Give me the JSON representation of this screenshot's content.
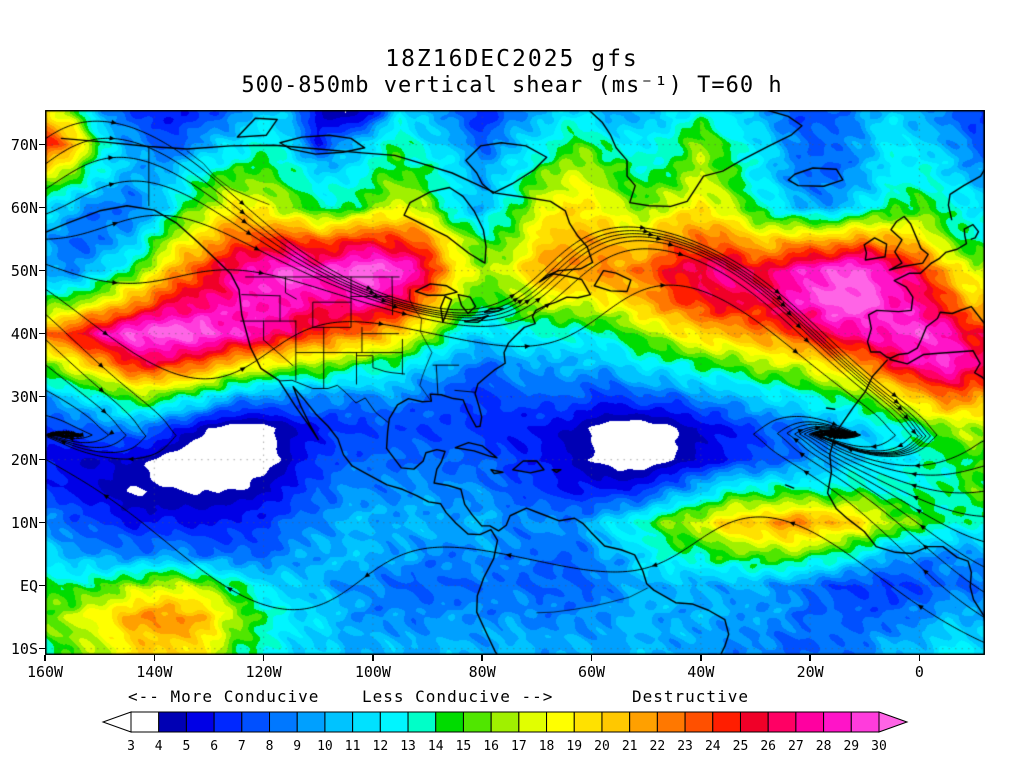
{
  "chart_data": {
    "type": "heatmap",
    "title": "18Z16DEC2025 gfs",
    "subtitle": "500-850mb vertical shear (ms⁻¹) T=60 h",
    "units": "ms⁻¹",
    "model": "gfs",
    "forecast_hour": "T=60 h",
    "lon_domain": [
      -160,
      12
    ],
    "lat_domain": [
      -11,
      75.5
    ],
    "lat_ticks": [
      {
        "label": "70N",
        "value": 70
      },
      {
        "label": "60N",
        "value": 60
      },
      {
        "label": "50N",
        "value": 50
      },
      {
        "label": "40N",
        "value": 40
      },
      {
        "label": "30N",
        "value": 30
      },
      {
        "label": "20N",
        "value": 20
      },
      {
        "label": "10N",
        "value": 10
      },
      {
        "label": "EQ",
        "value": 0
      },
      {
        "label": "10S",
        "value": -10
      }
    ],
    "lon_ticks": [
      {
        "label": "160W",
        "value": -160
      },
      {
        "label": "140W",
        "value": -140
      },
      {
        "label": "120W",
        "value": -120
      },
      {
        "label": "100W",
        "value": -100
      },
      {
        "label": "80W",
        "value": -80
      },
      {
        "label": "60W",
        "value": -60
      },
      {
        "label": "40W",
        "value": -40
      },
      {
        "label": "20W",
        "value": -20
      },
      {
        "label": "0",
        "value": 0
      }
    ],
    "annotations": {
      "more_conducive": "<-- More Conducive",
      "less_conducive": "Less Conducive -->",
      "destructive": "Destructive"
    },
    "levels": [
      3,
      4,
      5,
      6,
      7,
      8,
      9,
      10,
      11,
      12,
      13,
      14,
      15,
      16,
      17,
      18,
      19,
      20,
      21,
      22,
      23,
      24,
      25,
      26,
      27,
      28,
      29,
      30
    ],
    "colors": [
      "#ffffff",
      "#0000b4",
      "#0000e6",
      "#0028ff",
      "#0050ff",
      "#0078ff",
      "#00a0ff",
      "#00c3ff",
      "#00e1ff",
      "#00f5ff",
      "#00ffc8",
      "#00dc00",
      "#50e600",
      "#a0f000",
      "#e1ff00",
      "#ffff00",
      "#ffe100",
      "#ffc800",
      "#ffa000",
      "#ff7800",
      "#ff5000",
      "#ff1e00",
      "#f00028",
      "#ff0064",
      "#ff00a0",
      "#ff14c8",
      "#ff3cdc"
    ],
    "under_color": "#ffffff",
    "over_color": "#ff64e6",
    "grid": {
      "lon_start": -160,
      "lon_step": 5,
      "lat_start": 75,
      "lat_step": -5,
      "values": [
        [
          20,
          16,
          10,
          7,
          6,
          6,
          7,
          9,
          11,
          10,
          5,
          4,
          6,
          12,
          10,
          8,
          6,
          8,
          10,
          12,
          11,
          9,
          10,
          12,
          13,
          12,
          10,
          8,
          7,
          8,
          10,
          11,
          10,
          8,
          7
        ],
        [
          26,
          21,
          14,
          10,
          8,
          8,
          10,
          12,
          13,
          12,
          6,
          10,
          12,
          14,
          12,
          10,
          8,
          10,
          12,
          14,
          15,
          13,
          12,
          14,
          16,
          14,
          12,
          10,
          8,
          8,
          10,
          12,
          12,
          10,
          8
        ],
        [
          18,
          15,
          12,
          10,
          10,
          12,
          14,
          15,
          15,
          14,
          12,
          12,
          14,
          15,
          14,
          12,
          10,
          12,
          15,
          17,
          17,
          15,
          14,
          15,
          17,
          15,
          12,
          10,
          8,
          8,
          10,
          12,
          13,
          12,
          10
        ],
        [
          12,
          10,
          8,
          8,
          10,
          14,
          17,
          19,
          18,
          16,
          14,
          14,
          16,
          18,
          16,
          12,
          10,
          14,
          17,
          19,
          19,
          17,
          16,
          18,
          19,
          17,
          14,
          12,
          10,
          10,
          12,
          14,
          15,
          14,
          12
        ],
        [
          10,
          8,
          8,
          10,
          14,
          18,
          21,
          23,
          24,
          24,
          23,
          24,
          25,
          24,
          22,
          18,
          14,
          16,
          19,
          21,
          21,
          20,
          20,
          22,
          23,
          22,
          20,
          20,
          21,
          21,
          22,
          21,
          19,
          16,
          13
        ],
        [
          9,
          9,
          11,
          14,
          18,
          22,
          25,
          27,
          29,
          30,
          29,
          30,
          31,
          30,
          26,
          20,
          16,
          18,
          21,
          22,
          22,
          22,
          23,
          25,
          27,
          27,
          26,
          27,
          29,
          30,
          30,
          28,
          25,
          21,
          17
        ],
        [
          14,
          16,
          18,
          21,
          24,
          26,
          27,
          28,
          29,
          28,
          27,
          27,
          28,
          26,
          22,
          17,
          14,
          15,
          17,
          18,
          18,
          19,
          21,
          23,
          25,
          26,
          26,
          27,
          29,
          31,
          31,
          29,
          27,
          24,
          20
        ],
        [
          22,
          25,
          28,
          30,
          31,
          31,
          30,
          29,
          28,
          26,
          24,
          23,
          22,
          20,
          17,
          13,
          11,
          12,
          13,
          13,
          13,
          14,
          16,
          18,
          20,
          21,
          22,
          23,
          25,
          27,
          28,
          29,
          30,
          28,
          25
        ],
        [
          16,
          18,
          21,
          24,
          25,
          24,
          22,
          20,
          18,
          17,
          16,
          15,
          14,
          13,
          11,
          9,
          8,
          9,
          10,
          10,
          10,
          11,
          12,
          13,
          14,
          15,
          16,
          17,
          18,
          20,
          22,
          25,
          28,
          29,
          27
        ],
        [
          10,
          11,
          13,
          15,
          16,
          14,
          12,
          10,
          9,
          9,
          9,
          9,
          9,
          9,
          8,
          7,
          7,
          7,
          8,
          8,
          7,
          7,
          8,
          8,
          9,
          10,
          11,
          12,
          13,
          14,
          16,
          18,
          21,
          23,
          22
        ],
        [
          7,
          7,
          8,
          9,
          8,
          6,
          4,
          3,
          3,
          5,
          6,
          7,
          7,
          7,
          7,
          7,
          7,
          6,
          6,
          5,
          4,
          3,
          3,
          4,
          5,
          6,
          7,
          8,
          9,
          10,
          11,
          12,
          14,
          16,
          17
        ],
        [
          6,
          5,
          5,
          5,
          4,
          3,
          2,
          2,
          3,
          5,
          7,
          8,
          8,
          8,
          8,
          8,
          8,
          7,
          6,
          5,
          4,
          3,
          3,
          4,
          5,
          6,
          7,
          8,
          9,
          10,
          11,
          12,
          13,
          14,
          15
        ],
        [
          7,
          6,
          5,
          4,
          4,
          4,
          4,
          4,
          5,
          6,
          8,
          9,
          9,
          9,
          9,
          9,
          9,
          8,
          7,
          6,
          6,
          6,
          7,
          9,
          11,
          13,
          14,
          14,
          14,
          14,
          14,
          13,
          13,
          14,
          15
        ],
        [
          9,
          8,
          7,
          6,
          6,
          6,
          6,
          6,
          7,
          8,
          9,
          10,
          10,
          10,
          10,
          10,
          10,
          9,
          9,
          9,
          10,
          12,
          14,
          16,
          18,
          20,
          21,
          22,
          22,
          21,
          19,
          17,
          15,
          14,
          13
        ],
        [
          11,
          10,
          9,
          9,
          9,
          9,
          8,
          8,
          8,
          9,
          10,
          10,
          10,
          10,
          9,
          9,
          9,
          9,
          8,
          8,
          9,
          10,
          12,
          13,
          14,
          15,
          16,
          16,
          15,
          14,
          12,
          10,
          9,
          9,
          9
        ],
        [
          14,
          14,
          15,
          16,
          17,
          17,
          16,
          14,
          12,
          11,
          10,
          9,
          9,
          8,
          8,
          8,
          8,
          8,
          8,
          8,
          8,
          9,
          10,
          10,
          10,
          10,
          10,
          9,
          8,
          7,
          7,
          7,
          7,
          8,
          8
        ],
        [
          16,
          17,
          19,
          21,
          22,
          22,
          20,
          17,
          14,
          12,
          11,
          10,
          9,
          9,
          9,
          9,
          9,
          9,
          9,
          9,
          9,
          10,
          10,
          10,
          10,
          10,
          9,
          9,
          8,
          8,
          8,
          8,
          9,
          10,
          10
        ],
        [
          14,
          15,
          17,
          19,
          20,
          20,
          18,
          15,
          13,
          12,
          11,
          10,
          10,
          10,
          10,
          10,
          10,
          10,
          10,
          10,
          10,
          10,
          10,
          10,
          9,
          9,
          9,
          8,
          8,
          8,
          9,
          10,
          11,
          12,
          12
        ]
      ]
    }
  }
}
